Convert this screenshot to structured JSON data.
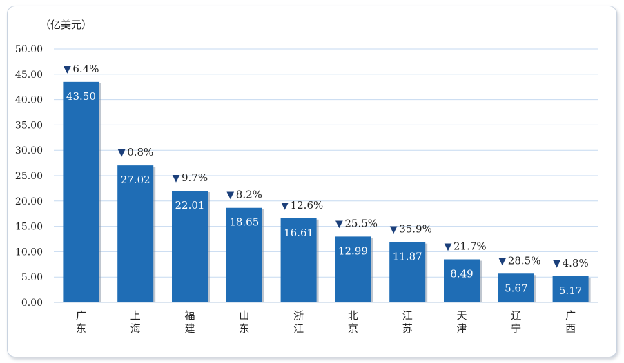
{
  "chart_data": {
    "type": "bar",
    "unit_label": "（亿美元）",
    "categories": [
      "广东",
      "上海",
      "福建",
      "山东",
      "浙江",
      "北京",
      "江苏",
      "天津",
      "辽宁",
      "广西"
    ],
    "values": [
      43.5,
      27.02,
      22.01,
      18.65,
      16.61,
      12.99,
      11.87,
      8.49,
      5.67,
      5.17
    ],
    "value_labels": [
      "43.50",
      "27.02",
      "22.01",
      "18.65",
      "16.61",
      "12.99",
      "11.87",
      "8.49",
      "5.67",
      "5.17"
    ],
    "change_labels": [
      "6.4%",
      "0.8%",
      "9.7%",
      "8.2%",
      "12.6%",
      "25.5%",
      "35.9%",
      "21.7%",
      "28.5%",
      "4.8%"
    ],
    "change_direction": "down",
    "change_marker": "▼",
    "ylim": [
      0,
      50
    ],
    "yticks": [
      "0.00",
      "5.00",
      "10.00",
      "15.00",
      "20.00",
      "25.00",
      "30.00",
      "35.00",
      "40.00",
      "45.00",
      "50.00"
    ],
    "grid": true,
    "colors": {
      "bar": "#1f6db5",
      "grid": "#c6daf0",
      "marker": "#1b3f7a",
      "value_text": "#ffffff",
      "axis_text": "#222222"
    }
  }
}
